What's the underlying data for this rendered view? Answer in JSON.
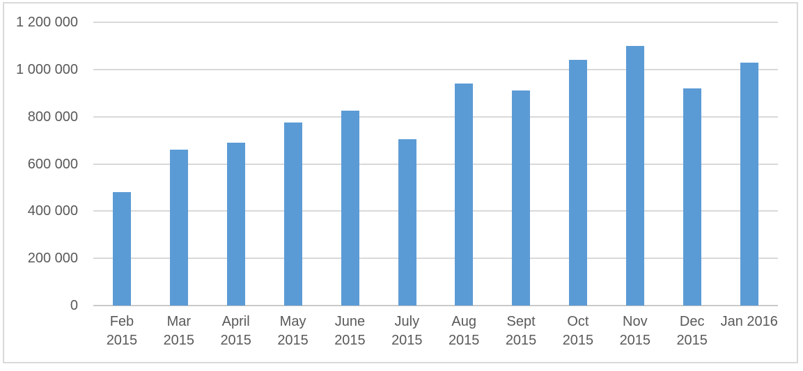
{
  "chart_data": {
    "type": "bar",
    "title": "",
    "xlabel": "",
    "ylabel": "",
    "grid": true,
    "categories": [
      "Feb 2015",
      "Mar 2015",
      "April 2015",
      "May 2015",
      "June 2015",
      "July 2015",
      "Aug 2015",
      "Sept 2015",
      "Oct 2015",
      "Nov 2015",
      "Dec 2015",
      "Jan 2016"
    ],
    "category_lines": [
      [
        "Feb",
        "2015"
      ],
      [
        "Mar",
        "2015"
      ],
      [
        "April",
        "2015"
      ],
      [
        "May",
        "2015"
      ],
      [
        "June",
        "2015"
      ],
      [
        "July",
        "2015"
      ],
      [
        "Aug",
        "2015"
      ],
      [
        "Sept",
        "2015"
      ],
      [
        "Oct",
        "2015"
      ],
      [
        "Nov",
        "2015"
      ],
      [
        "Dec",
        "2015"
      ],
      [
        "Jan 2016"
      ]
    ],
    "values": [
      480000,
      660000,
      690000,
      775000,
      825000,
      705000,
      940000,
      910000,
      1040000,
      1100000,
      920000,
      1030000
    ],
    "ylim": [
      0,
      1200000
    ],
    "yticks": [
      {
        "value": 0,
        "label": "0"
      },
      {
        "value": 200000,
        "label": "200 000"
      },
      {
        "value": 400000,
        "label": "400 000"
      },
      {
        "value": 600000,
        "label": "600 000"
      },
      {
        "value": 800000,
        "label": "800 000"
      },
      {
        "value": 1000000,
        "label": "1 000 000"
      },
      {
        "value": 1200000,
        "label": "1 200 000"
      }
    ],
    "colors": {
      "bar": "#5B9BD5",
      "gridline": "#D9D9D9",
      "axis_line": "#C9C9C9",
      "tick_text": "#595959",
      "border": "#D9D9D9",
      "background": "#FFFFFF"
    }
  }
}
